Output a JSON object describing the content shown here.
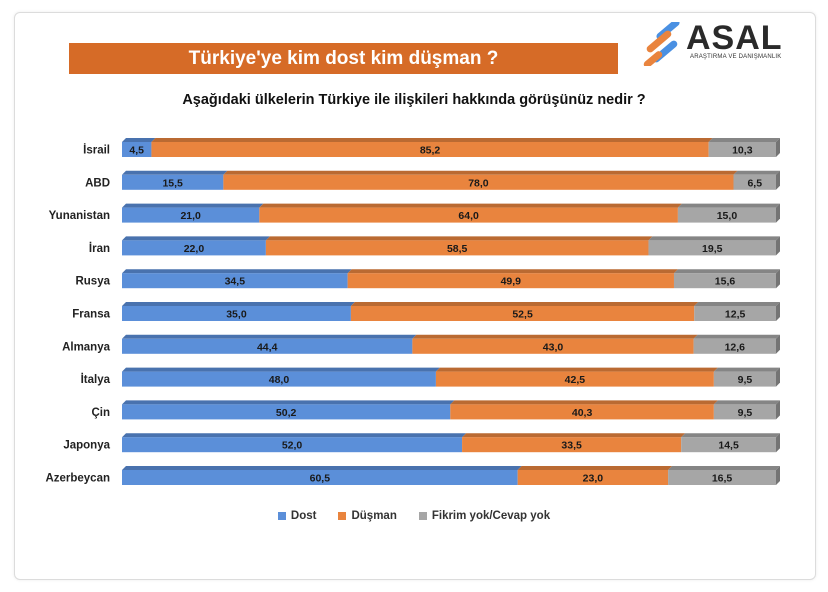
{
  "header": {
    "title": "Türkiye'ye kim dost kim düşman ?",
    "logo_text": "ASAL",
    "logo_subtitle": "ARAŞTIRMA VE DANIŞMANLIK"
  },
  "chart_data": {
    "type": "bar",
    "orientation": "horizontal",
    "stacked": true,
    "percent_stacked": true,
    "title": "Aşağıdaki ülkelerin Türkiye ile ilişkileri hakkında görüşünüz nedir ?",
    "categories": [
      "İsrail",
      "ABD",
      "Yunanistan",
      "İran",
      "Rusya",
      "Fransa",
      "Almanya",
      "İtalya",
      "Çin",
      "Japonya",
      "Azerbeycan"
    ],
    "series": [
      {
        "name": "Dost",
        "color": "#5b8fd9",
        "values": [
          4.5,
          15.5,
          21.0,
          22.0,
          34.5,
          35.0,
          44.4,
          48.0,
          50.2,
          52.0,
          60.5
        ],
        "labels": [
          "4,5",
          "15,5",
          "21,0",
          "22,0",
          "34,5",
          "35,0",
          "44,4",
          "48,0",
          "50,2",
          "52,0",
          "60,5"
        ]
      },
      {
        "name": "Düşman",
        "color": "#e9843e",
        "values": [
          85.2,
          78.0,
          64.0,
          58.5,
          49.9,
          52.5,
          43.0,
          42.5,
          40.3,
          33.5,
          23.0
        ],
        "labels": [
          "85,2",
          "78,0",
          "64,0",
          "58,5",
          "49,9",
          "52,5",
          "43,0",
          "42,5",
          "40,3",
          "33,5",
          "23,0"
        ]
      },
      {
        "name": "Fikrim yok/Cevap yok",
        "color": "#a6a6a6",
        "values": [
          10.3,
          6.5,
          15.0,
          19.5,
          15.6,
          12.5,
          12.6,
          9.5,
          9.5,
          14.5,
          16.5
        ],
        "labels": [
          "10,3",
          "6,5",
          "15,0",
          "19,5",
          "15,6",
          "12,5",
          "12,6",
          "9,5",
          "9,5",
          "14,5",
          "16,5"
        ]
      }
    ],
    "legend_position": "bottom",
    "grid": false
  }
}
